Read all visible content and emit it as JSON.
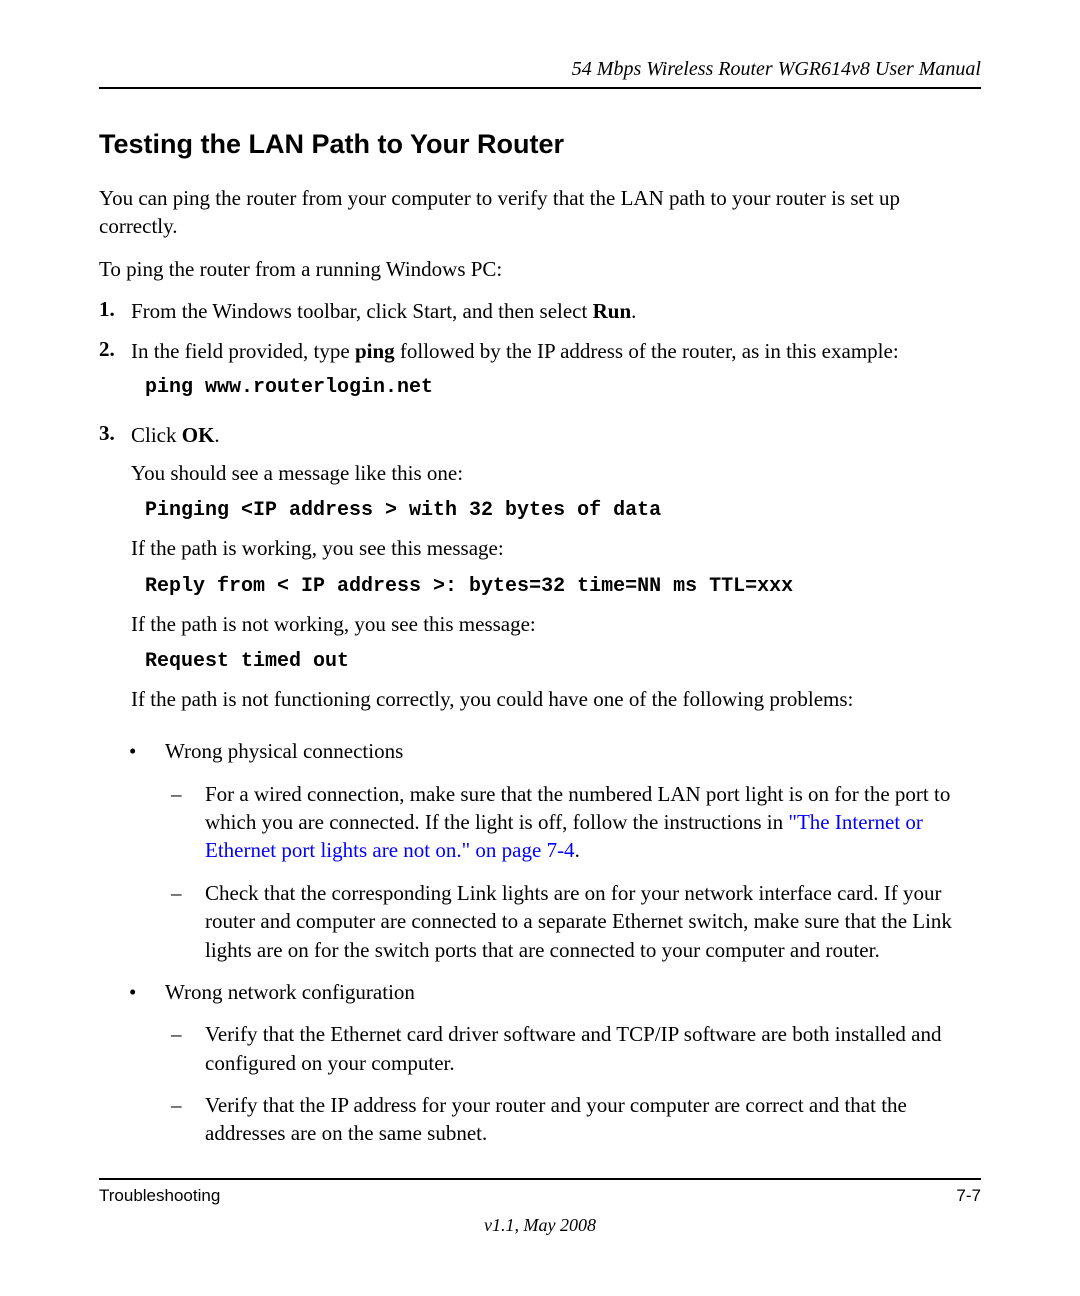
{
  "header": {
    "title": "54 Mbps Wireless Router WGR614v8 User Manual"
  },
  "section": {
    "heading": "Testing the LAN Path to Your Router",
    "intro": "You can ping the router from your computer to verify that the LAN path to your router is set up correctly.",
    "prompt": "To ping the router from a running Windows PC:"
  },
  "steps": {
    "s1": {
      "num": "1.",
      "prefix": "From the Windows toolbar, click Start, and then select ",
      "bold": "Run",
      "suffix": "."
    },
    "s2": {
      "num": "2.",
      "prefix": "In the field provided, type ",
      "bold": "ping",
      "suffix": " followed by the IP address of the router, as in this example:",
      "code": "ping www.routerlogin.net"
    },
    "s3": {
      "num": "3.",
      "prefix": "Click ",
      "bold": "OK",
      "suffix": ".",
      "msg1": "You should see a message like this one:",
      "code1": "Pinging <IP address > with 32 bytes of data",
      "msg2": "If the path is working, you see this message:",
      "code2": "Reply from < IP address >: bytes=32 time=NN ms TTL=xxx",
      "msg3": "If the path is not working, you see this message:",
      "code3": "Request timed out",
      "msg4": "If the path is not functioning correctly, you could have one of the following problems:"
    }
  },
  "bullets": {
    "b1": {
      "text": "Wrong physical connections",
      "d1": {
        "prefix": "For a wired connection, make sure that the numbered LAN port light is on for the port to which you are connected. If the light is off, follow the instructions in ",
        "link": "\"The Internet or Ethernet port lights are not on.\" on page 7-4",
        "suffix": "."
      },
      "d2": "Check that the corresponding Link lights are on for your network interface card. If your router and computer are connected to a separate Ethernet switch, make sure that the Link lights are on for the switch ports that are connected to your computer and router."
    },
    "b2": {
      "text": "Wrong network configuration",
      "d1": "Verify that the Ethernet card driver software and TCP/IP software are both installed and configured on your computer.",
      "d2": "Verify that the IP address for your router and your computer are correct and that the addresses are on the same subnet."
    }
  },
  "footer": {
    "section": "Troubleshooting",
    "page": "7-7",
    "version": "v1.1, May 2008"
  },
  "colors": {
    "link": "#0000ff",
    "text": "#000000",
    "background": "#ffffff"
  }
}
